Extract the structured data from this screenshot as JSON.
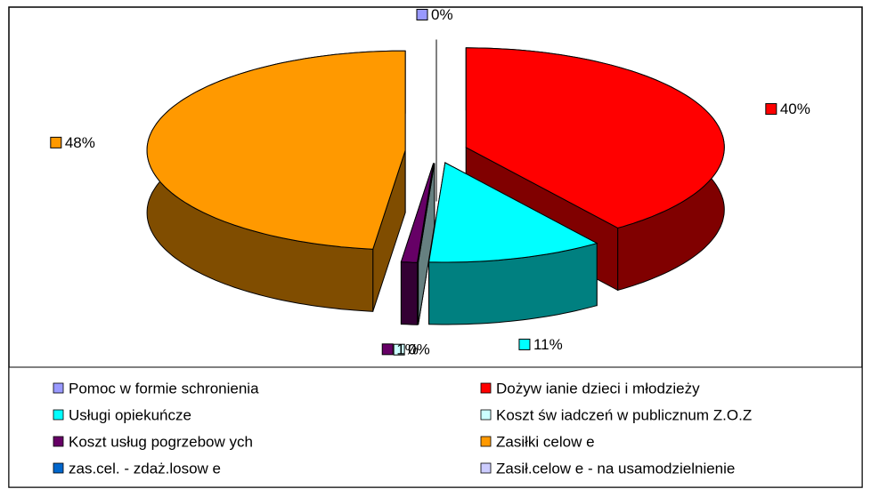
{
  "chart_data": {
    "type": "pie",
    "categories": [
      "Pomoc w  formie schronienia",
      "Dożyw ianie dzieci i młodzieży",
      "Usługi opiekuńcze",
      "Koszt św iadczeń w  publicznum Z.O.Z",
      "Koszt usług pogrzebow ych",
      "Zasiłki celow e",
      "zas.cel. - zdaż.losow e",
      "Zasił.celow e - na usamodzielnienie"
    ],
    "values": [
      0,
      40,
      11,
      0,
      1,
      48,
      0,
      0
    ],
    "value_labels": [
      "0%",
      "40%",
      "11%",
      "0%",
      "1%",
      "48%",
      null,
      null
    ],
    "colors": [
      "#9999ff",
      "#ff0000",
      "#00ffff",
      "#ccffff",
      "#660066",
      "#ff9900",
      "#0066cc",
      "#ccccff"
    ],
    "legend": "bottom"
  }
}
